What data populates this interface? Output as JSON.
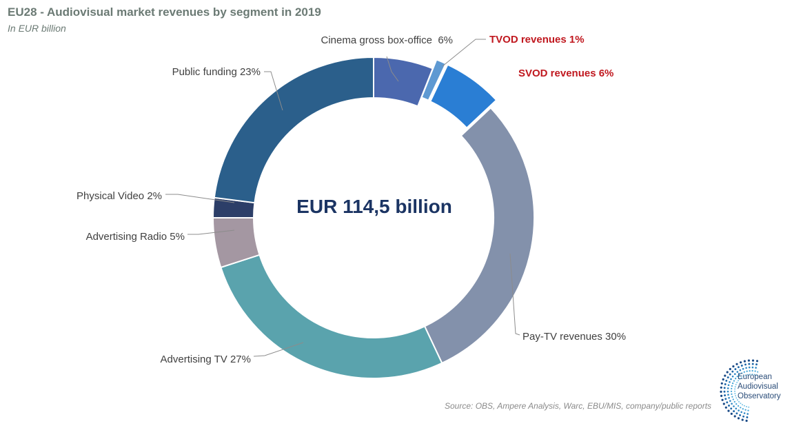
{
  "title": "EU28 - Audiovisual market revenues by segment in 2019",
  "subtitle": "In EUR billion",
  "center_total": "EUR 114,5 billion",
  "source": "Source: OBS, Ampere Analysis, Warc, EBU/MIS, company/public reports",
  "logo": {
    "line1": "European",
    "line2": "Audiovisual",
    "line3": "Observatory"
  },
  "colors": {
    "cinema": "#4b68ae",
    "tvod": "#5e99d2",
    "svod": "#2a7ed4",
    "paytv": "#8391ab",
    "advtv": "#5aa3ad",
    "advradio": "#a497a2",
    "physical": "#2c3e68",
    "public": "#2b5f8b",
    "label": "#404040",
    "highlight": "#c0181f"
  },
  "chart_data": {
    "type": "pie",
    "donut": true,
    "start": "12 o'clock, clockwise",
    "slices": [
      {
        "label": "Cinema gross box-office  6%",
        "value": 6,
        "color": "#4b68ae",
        "exploded": false,
        "highlight": false
      },
      {
        "label": "TVOD revenues 1%",
        "value": 1,
        "color": "#5e99d2",
        "exploded": true,
        "highlight": true
      },
      {
        "label": "SVOD revenues 6%",
        "value": 6,
        "color": "#2a7ed4",
        "exploded": true,
        "highlight": true
      },
      {
        "label": "Pay-TV revenues 30%",
        "value": 30,
        "color": "#8391ab",
        "exploded": false,
        "highlight": false
      },
      {
        "label": "Advertising TV 27%",
        "value": 27,
        "color": "#5aa3ad",
        "exploded": false,
        "highlight": false
      },
      {
        "label": "Advertising Radio 5%",
        "value": 5,
        "color": "#a497a2",
        "exploded": false,
        "highlight": false
      },
      {
        "label": "Physical Video 2%",
        "value": 2,
        "color": "#2c3e68",
        "exploded": false,
        "highlight": false
      },
      {
        "label": "Public funding 23%",
        "value": 23,
        "color": "#2b5f8b",
        "exploded": false,
        "highlight": false
      }
    ]
  }
}
